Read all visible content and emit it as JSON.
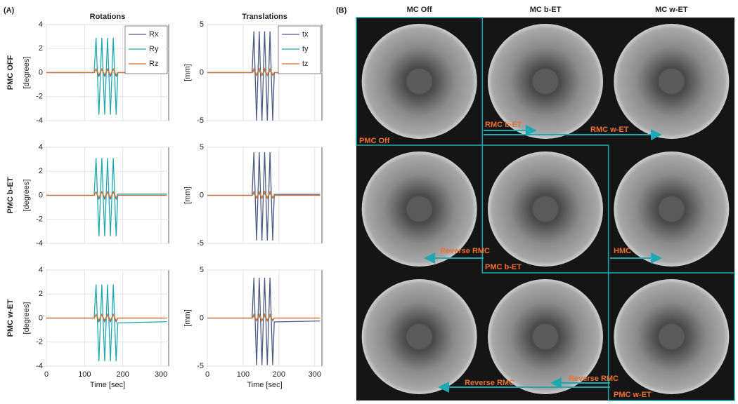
{
  "panel_labels": [
    "(A)",
    "(B)"
  ],
  "chart_data": [
    {
      "type": "line",
      "title": "Rotations",
      "row_label": "PMC OFF",
      "ylabel": "[degrees]",
      "legend": "upper right",
      "x": [
        0,
        125,
        130,
        137.5,
        145,
        152.5,
        160,
        167.5,
        175,
        182.5,
        187,
        315
      ],
      "xlim": [
        0,
        320
      ],
      "xticks": [
        0,
        100,
        200,
        300
      ],
      "ylim": [
        -4,
        4
      ],
      "yticks": [
        -4,
        -2,
        0,
        2,
        4
      ],
      "grid": true,
      "series": [
        {
          "name": "Rx",
          "color": "#4a5a80",
          "values": [
            0,
            0,
            0.3,
            -0.3,
            0.3,
            -0.3,
            0.3,
            -0.3,
            0.3,
            -0.3,
            0,
            0
          ]
        },
        {
          "name": "Ry",
          "color": "#1fa8b0",
          "values": [
            0,
            0,
            2.9,
            -3.5,
            2.9,
            -3.5,
            2.9,
            -3.5,
            2.9,
            -3.5,
            0,
            0
          ]
        },
        {
          "name": "Rz",
          "color": "#e07030",
          "values": [
            0,
            0,
            0.3,
            -0.2,
            0.3,
            -0.2,
            0.3,
            -0.2,
            0.3,
            -0.2,
            0,
            0
          ]
        }
      ]
    },
    {
      "type": "line",
      "title": "Translations",
      "ylabel": "[mm]",
      "legend": "upper right",
      "x": [
        0,
        125,
        130,
        137.5,
        145,
        152.5,
        160,
        167.5,
        175,
        182.5,
        187,
        315
      ],
      "xlim": [
        0,
        320
      ],
      "xticks": [
        0,
        100,
        200,
        300
      ],
      "ylim": [
        -5,
        5
      ],
      "yticks": [
        -5,
        0,
        5
      ],
      "grid": true,
      "series": [
        {
          "name": "tx",
          "color": "#4a5a80",
          "values": [
            0,
            0,
            4.3,
            -5,
            4.3,
            -5,
            4.3,
            -5,
            4.3,
            -5,
            0,
            0
          ]
        },
        {
          "name": "ty",
          "color": "#1fa8b0",
          "values": [
            0,
            0,
            0.2,
            -0.2,
            0.2,
            -0.2,
            0.2,
            -0.2,
            0.2,
            -0.2,
            0,
            0
          ]
        },
        {
          "name": "tz",
          "color": "#e07030",
          "values": [
            0,
            0,
            0.4,
            -0.3,
            0.4,
            -0.3,
            0.4,
            -0.3,
            0.4,
            -0.3,
            0,
            0
          ]
        }
      ]
    },
    {
      "type": "line",
      "row_label": "PMC b-ET",
      "ylabel": "[degrees]",
      "x": [
        0,
        125,
        130,
        137.5,
        145,
        152.5,
        160,
        167.5,
        175,
        182.5,
        187,
        315
      ],
      "xlim": [
        0,
        320
      ],
      "xticks": [
        0,
        100,
        200,
        300
      ],
      "ylim": [
        -4,
        4
      ],
      "yticks": [
        -4,
        -2,
        0,
        2,
        4
      ],
      "grid": true,
      "series": [
        {
          "name": "Rx",
          "color": "#4a5a80",
          "values": [
            0,
            0,
            0.3,
            -0.3,
            0.3,
            -0.3,
            0.3,
            -0.3,
            0.3,
            -0.3,
            0.1,
            0.1
          ]
        },
        {
          "name": "Ry",
          "color": "#1fa8b0",
          "values": [
            0,
            0,
            3.1,
            -3.4,
            3.1,
            -3.4,
            3.1,
            -3.4,
            3.1,
            -3.4,
            0.1,
            0.1
          ]
        },
        {
          "name": "Rz",
          "color": "#e07030",
          "values": [
            0,
            0,
            0.3,
            -0.2,
            0.3,
            -0.2,
            0.3,
            -0.2,
            0.3,
            -0.2,
            0,
            0
          ]
        }
      ]
    },
    {
      "type": "line",
      "ylabel": "[mm]",
      "x": [
        0,
        125,
        130,
        137.5,
        145,
        152.5,
        160,
        167.5,
        175,
        182.5,
        187,
        315
      ],
      "xlim": [
        0,
        320
      ],
      "xticks": [
        0,
        100,
        200,
        300
      ],
      "ylim": [
        -5,
        5
      ],
      "yticks": [
        -5,
        0,
        5
      ],
      "grid": true,
      "series": [
        {
          "name": "tx",
          "color": "#4a5a80",
          "values": [
            0,
            0,
            4.5,
            -4.7,
            4.5,
            -4.7,
            4.5,
            -4.7,
            4.5,
            -4.7,
            0.1,
            0.1
          ]
        },
        {
          "name": "ty",
          "color": "#1fa8b0",
          "values": [
            0,
            0,
            0.2,
            -0.2,
            0.2,
            -0.2,
            0.2,
            -0.2,
            0.2,
            -0.2,
            0,
            0
          ]
        },
        {
          "name": "tz",
          "color": "#e07030",
          "values": [
            0,
            0,
            0.4,
            -0.3,
            0.4,
            -0.3,
            0.4,
            -0.3,
            0.4,
            -0.3,
            0,
            0
          ]
        }
      ]
    },
    {
      "type": "line",
      "row_label": "PMC w-ET",
      "ylabel": "[degrees]",
      "xlabel": "Time [sec]",
      "x": [
        0,
        125,
        130,
        137.5,
        145,
        152.5,
        160,
        167.5,
        175,
        182.5,
        187,
        315
      ],
      "xlim": [
        0,
        320
      ],
      "xticks": [
        0,
        100,
        200,
        300
      ],
      "ylim": [
        -4,
        4
      ],
      "yticks": [
        -4,
        -2,
        0,
        2,
        4
      ],
      "grid": true,
      "series": [
        {
          "name": "Rx",
          "color": "#4a5a80",
          "values": [
            0,
            0,
            0.3,
            -0.3,
            0.3,
            -0.3,
            0.3,
            -0.3,
            0.3,
            -0.3,
            0,
            0
          ]
        },
        {
          "name": "Ry",
          "color": "#1fa8b0",
          "values": [
            0,
            0,
            2.8,
            -3.6,
            2.8,
            -3.6,
            2.8,
            -3.6,
            2.8,
            -3.6,
            -0.4,
            -0.3
          ]
        },
        {
          "name": "Rz",
          "color": "#e07030",
          "values": [
            0,
            0,
            0.3,
            -0.2,
            0.3,
            -0.2,
            0.3,
            -0.2,
            0.3,
            -0.2,
            0,
            0
          ]
        }
      ]
    },
    {
      "type": "line",
      "ylabel": "[mm]",
      "xlabel": "Time [sec]",
      "x": [
        0,
        125,
        130,
        137.5,
        145,
        152.5,
        160,
        167.5,
        175,
        182.5,
        187,
        315
      ],
      "xlim": [
        0,
        320
      ],
      "xticks": [
        0,
        100,
        200,
        300
      ],
      "ylim": [
        -5,
        5
      ],
      "yticks": [
        -5,
        0,
        5
      ],
      "grid": true,
      "series": [
        {
          "name": "tx",
          "color": "#4a5a80",
          "values": [
            0,
            0,
            4.2,
            -4.9,
            4.2,
            -4.9,
            4.2,
            -4.9,
            4.2,
            -4.9,
            -0.4,
            -0.3
          ]
        },
        {
          "name": "ty",
          "color": "#1fa8b0",
          "values": [
            0,
            0,
            0.2,
            -0.2,
            0.2,
            -0.2,
            0.2,
            -0.2,
            0.2,
            -0.2,
            0,
            0
          ]
        },
        {
          "name": "tz",
          "color": "#e07030",
          "values": [
            0,
            0,
            0.4,
            -0.3,
            0.4,
            -0.3,
            0.4,
            -0.3,
            0.4,
            -0.3,
            0,
            0
          ]
        }
      ]
    }
  ],
  "panel_b": {
    "columns": [
      "MC Off",
      "MC b-ET",
      "MC w-ET"
    ],
    "annotations": [
      "PMC Off",
      "RMC b-ET",
      "RMC w-ET",
      "Reverse RMC",
      "HMC",
      "PMC b-ET",
      "Reverse RMC",
      "Reverse RMC",
      "PMC w-ET"
    ]
  }
}
